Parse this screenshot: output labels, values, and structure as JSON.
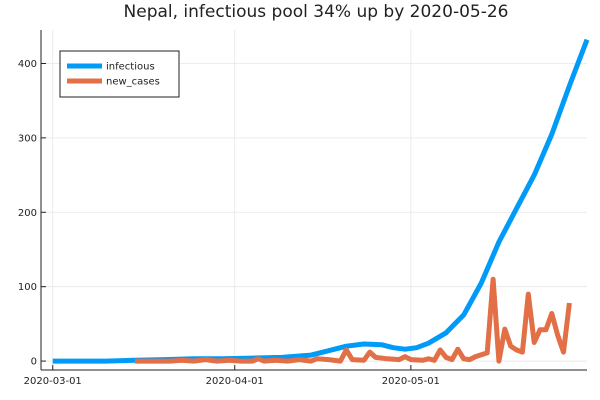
{
  "chart_data": {
    "type": "line",
    "title": "Nepal, infectious pool 34% up by 2020-05-26",
    "xlabel": "",
    "ylabel": "",
    "x_range": [
      "2020-02-28",
      "2020-05-31"
    ],
    "ylim": [
      -12,
      445
    ],
    "grid": true,
    "legend_position": "top-left",
    "x_ticks": [
      "2020-03-01",
      "2020-04-01",
      "2020-05-01"
    ],
    "y_ticks": [
      0,
      100,
      200,
      300,
      400
    ],
    "series": [
      {
        "name": "infectious",
        "color": "#009af9",
        "points": [
          [
            "2020-03-01",
            0
          ],
          [
            "2020-03-05",
            0
          ],
          [
            "2020-03-10",
            0
          ],
          [
            "2020-03-15",
            1
          ],
          [
            "2020-03-20",
            2
          ],
          [
            "2020-03-25",
            3
          ],
          [
            "2020-03-30",
            3
          ],
          [
            "2020-04-04",
            4
          ],
          [
            "2020-04-09",
            5
          ],
          [
            "2020-04-14",
            8
          ],
          [
            "2020-04-17",
            14
          ],
          [
            "2020-04-20",
            20
          ],
          [
            "2020-04-23",
            23
          ],
          [
            "2020-04-26",
            22
          ],
          [
            "2020-04-28",
            18
          ],
          [
            "2020-04-30",
            16
          ],
          [
            "2020-05-02",
            18
          ],
          [
            "2020-05-04",
            24
          ],
          [
            "2020-05-07",
            38
          ],
          [
            "2020-05-10",
            62
          ],
          [
            "2020-05-13",
            105
          ],
          [
            "2020-05-16",
            160
          ],
          [
            "2020-05-19",
            205
          ],
          [
            "2020-05-22",
            250
          ],
          [
            "2020-05-25",
            305
          ],
          [
            "2020-05-28",
            370
          ],
          [
            "2020-05-31",
            432
          ]
        ]
      },
      {
        "name": "new_cases",
        "color": "#e26f46",
        "points": [
          [
            "2020-03-15",
            0
          ],
          [
            "2020-03-17",
            0
          ],
          [
            "2020-03-19",
            0
          ],
          [
            "2020-03-21",
            0
          ],
          [
            "2020-03-23",
            1
          ],
          [
            "2020-03-25",
            0
          ],
          [
            "2020-03-27",
            2
          ],
          [
            "2020-03-29",
            0
          ],
          [
            "2020-03-31",
            1
          ],
          [
            "2020-04-02",
            0
          ],
          [
            "2020-04-04",
            0
          ],
          [
            "2020-04-05",
            3
          ],
          [
            "2020-04-06",
            0
          ],
          [
            "2020-04-08",
            1
          ],
          [
            "2020-04-10",
            0
          ],
          [
            "2020-04-12",
            2
          ],
          [
            "2020-04-14",
            0
          ],
          [
            "2020-04-15",
            3
          ],
          [
            "2020-04-17",
            2
          ],
          [
            "2020-04-19",
            0
          ],
          [
            "2020-04-20",
            15
          ],
          [
            "2020-04-21",
            2
          ],
          [
            "2020-04-23",
            1
          ],
          [
            "2020-04-24",
            12
          ],
          [
            "2020-04-25",
            5
          ],
          [
            "2020-04-27",
            3
          ],
          [
            "2020-04-29",
            2
          ],
          [
            "2020-04-30",
            6
          ],
          [
            "2020-05-01",
            2
          ],
          [
            "2020-05-03",
            1
          ],
          [
            "2020-05-04",
            3
          ],
          [
            "2020-05-05",
            1
          ],
          [
            "2020-05-06",
            15
          ],
          [
            "2020-05-07",
            5
          ],
          [
            "2020-05-08",
            2
          ],
          [
            "2020-05-09",
            16
          ],
          [
            "2020-05-10",
            3
          ],
          [
            "2020-05-11",
            2
          ],
          [
            "2020-05-12",
            6
          ],
          [
            "2020-05-14",
            11
          ],
          [
            "2020-05-15",
            110
          ],
          [
            "2020-05-16",
            0
          ],
          [
            "2020-05-17",
            43
          ],
          [
            "2020-05-18",
            20
          ],
          [
            "2020-05-19",
            15
          ],
          [
            "2020-05-20",
            12
          ],
          [
            "2020-05-21",
            90
          ],
          [
            "2020-05-22",
            25
          ],
          [
            "2020-05-23",
            42
          ],
          [
            "2020-05-24",
            42
          ],
          [
            "2020-05-25",
            64
          ],
          [
            "2020-05-26",
            35
          ],
          [
            "2020-05-27",
            12
          ],
          [
            "2020-05-28",
            78
          ]
        ]
      }
    ]
  }
}
